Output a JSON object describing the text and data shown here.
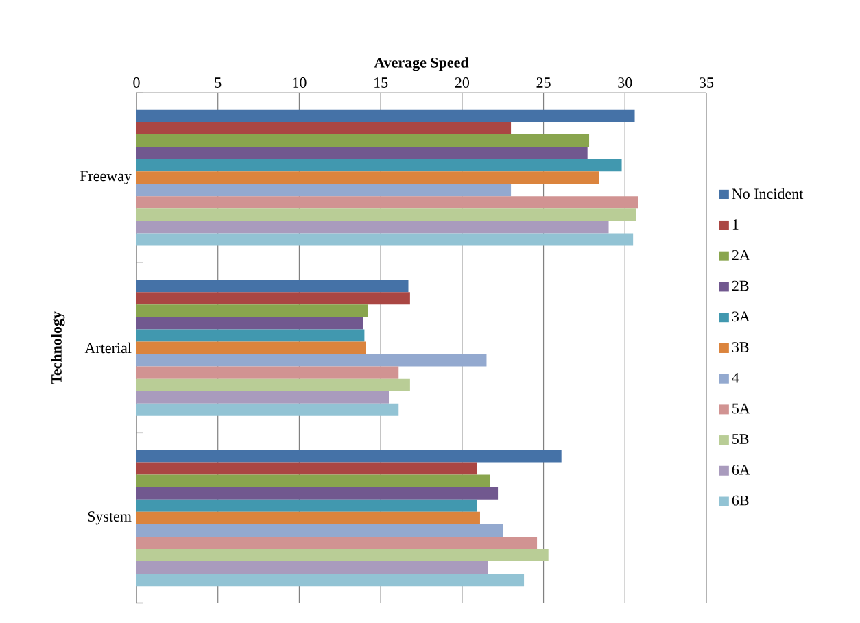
{
  "chart_data": {
    "type": "bar",
    "orientation": "horizontal",
    "xlabel": "Average Speed",
    "ylabel": "Technology",
    "categories": [
      "Freeway",
      "Arterial",
      "System"
    ],
    "xlim": [
      0,
      35
    ],
    "xticks": [
      0,
      5,
      10,
      15,
      20,
      25,
      30,
      35
    ],
    "grid": "x",
    "legend": "right",
    "series": [
      {
        "name": "No Incident",
        "color": "#4572a7",
        "values": [
          30.6,
          16.7,
          26.1
        ]
      },
      {
        "name": "1",
        "color": "#aa4643",
        "values": [
          23.0,
          16.8,
          20.9
        ]
      },
      {
        "name": "2A",
        "color": "#89a54e",
        "values": [
          27.8,
          14.2,
          21.7
        ]
      },
      {
        "name": "2B",
        "color": "#71588f",
        "values": [
          27.7,
          13.9,
          22.2
        ]
      },
      {
        "name": "3A",
        "color": "#4198af",
        "values": [
          29.8,
          14.0,
          20.9
        ]
      },
      {
        "name": "3B",
        "color": "#db843d",
        "values": [
          28.4,
          14.1,
          21.1
        ]
      },
      {
        "name": "4",
        "color": "#93a9cf",
        "values": [
          23.0,
          21.5,
          22.5
        ]
      },
      {
        "name": "5A",
        "color": "#d19392",
        "values": [
          30.8,
          16.1,
          24.6
        ]
      },
      {
        "name": "5B",
        "color": "#b9cd96",
        "values": [
          30.7,
          16.8,
          25.3
        ]
      },
      {
        "name": "6A",
        "color": "#a99bbd",
        "values": [
          29.0,
          15.5,
          21.6
        ]
      },
      {
        "name": "6B",
        "color": "#92c3d4",
        "values": [
          30.5,
          16.1,
          23.8
        ]
      }
    ]
  }
}
